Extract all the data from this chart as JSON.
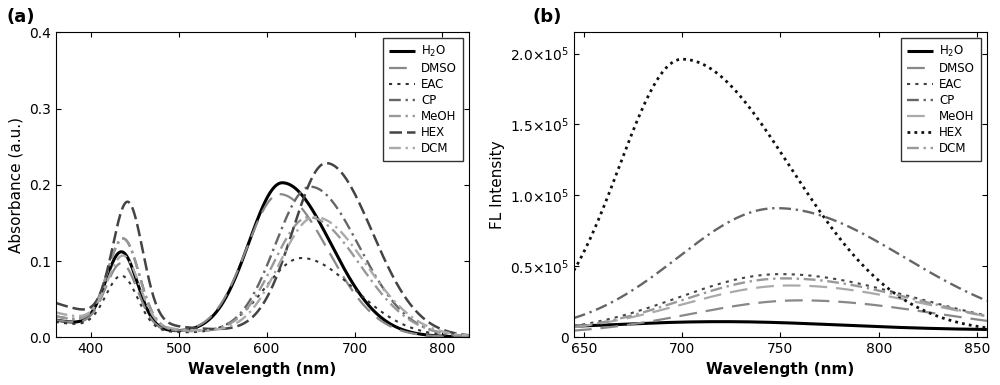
{
  "panel_a": {
    "xlabel": "Wavelength (nm)",
    "ylabel": "Absorbance (a.u.)",
    "xlim": [
      360,
      830
    ],
    "ylim": [
      0.0,
      0.4
    ],
    "yticks": [
      0.0,
      0.1,
      0.2,
      0.3,
      0.4
    ],
    "xticks": [
      400,
      500,
      600,
      700,
      800
    ]
  },
  "panel_b": {
    "xlabel": "Wavelength (nm)",
    "ylabel": "FL Intensity",
    "xlim": [
      645,
      855
    ],
    "ylim": [
      0.0,
      215000.0
    ],
    "yticks": [
      0,
      50000,
      100000,
      150000,
      200000
    ],
    "xticks": [
      650,
      700,
      750,
      800,
      850
    ]
  }
}
